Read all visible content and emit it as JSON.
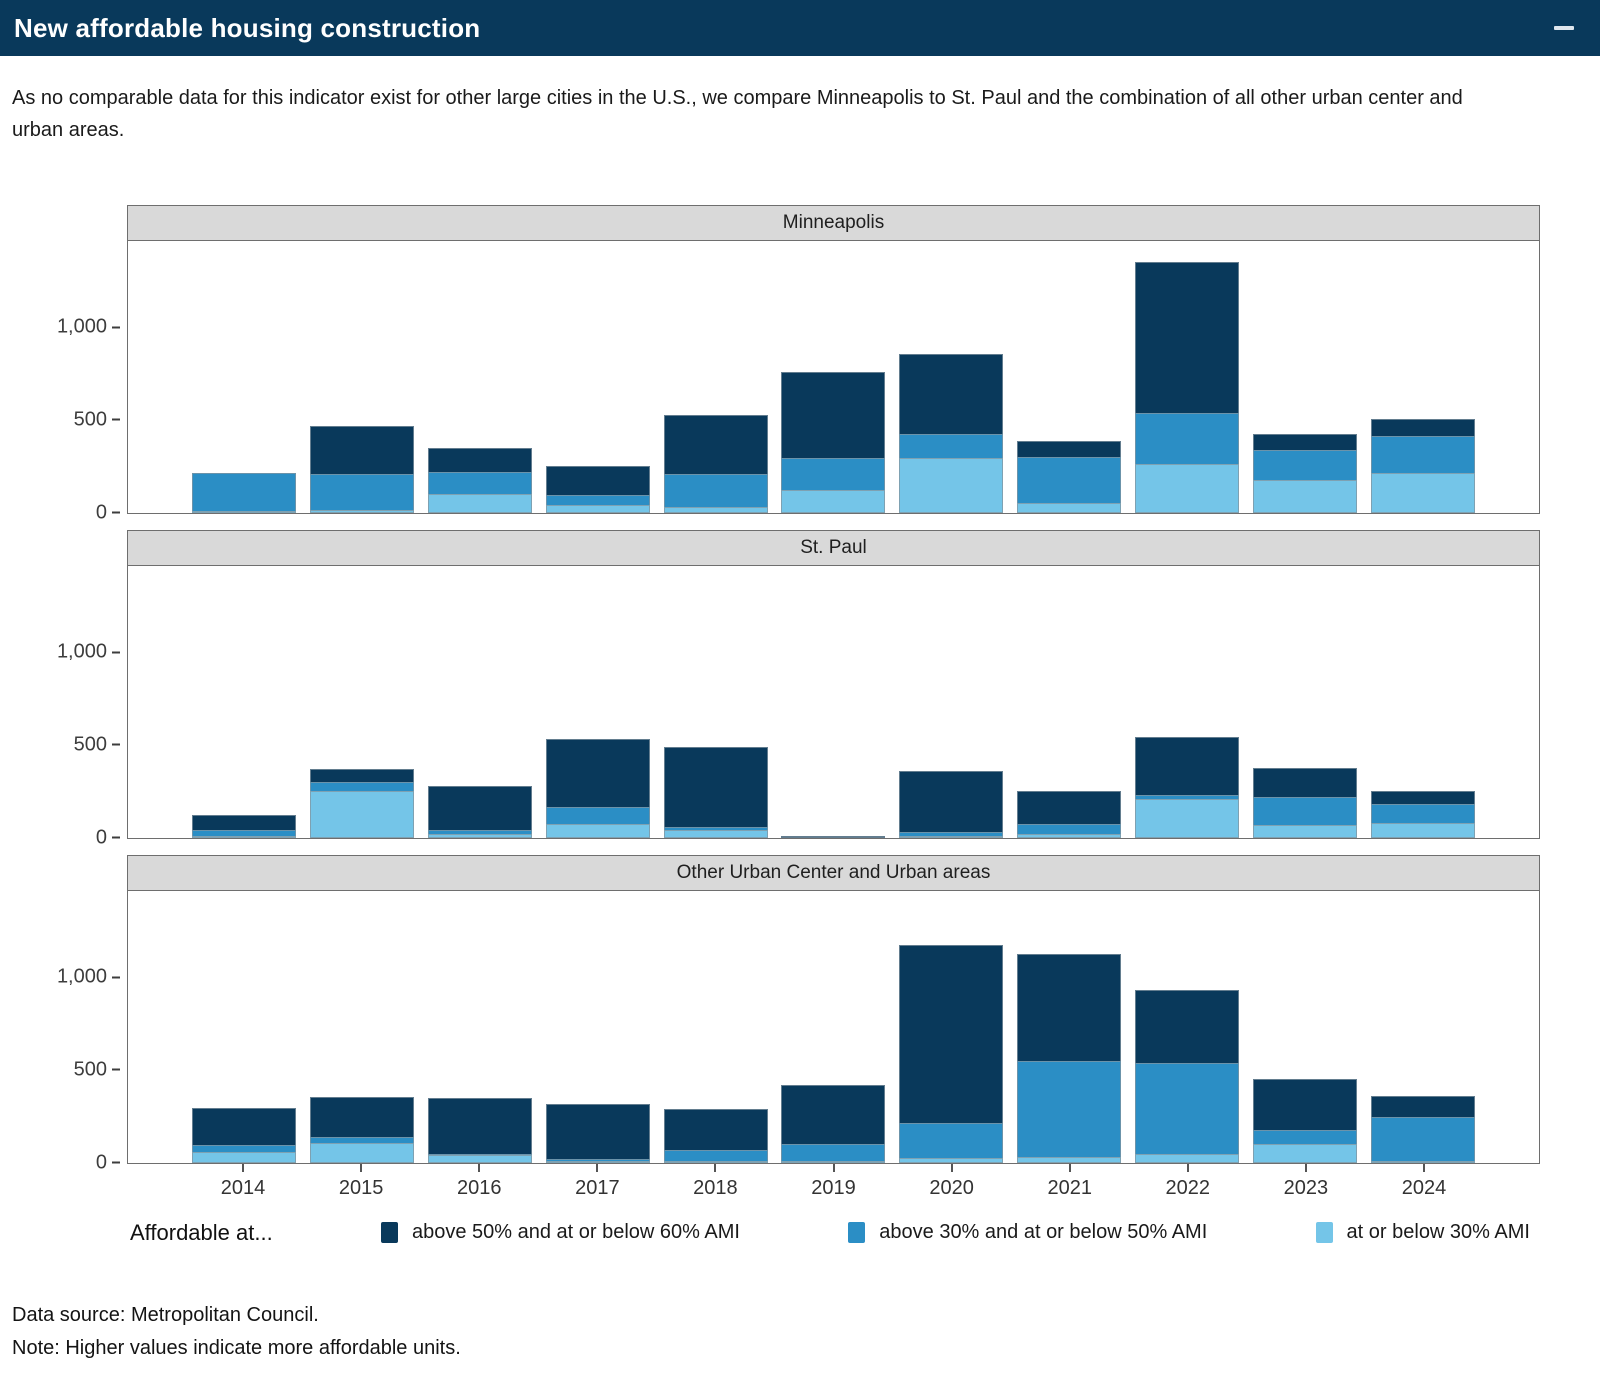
{
  "window": {
    "title": "New affordable housing construction",
    "icons": {
      "minimize": "minus-dash"
    }
  },
  "subtitle": "As no comparable data for this indicator exist for other large cities in the U.S., we compare Minneapolis to St. Paul and the combination of all other urban center and urban areas.",
  "colors": {
    "header_bg": "#09395B",
    "strip_bg": "#D9D9D9",
    "dark": "#09395B",
    "medium": "#2B8EC5",
    "light": "#74C5E8"
  },
  "legend": {
    "title": "Affordable at...",
    "items": [
      {
        "label": "above 50% and at or below 60% AMI",
        "color_key": "dark"
      },
      {
        "label": "above 30% and at or below 50% AMI",
        "color_key": "medium"
      },
      {
        "label": "at or below 30% AMI",
        "color_key": "light"
      }
    ]
  },
  "footer": {
    "source": "Data source: Metropolitan Council.",
    "note": "Note: Higher values indicate more affordable units."
  },
  "chart_data": {
    "type": "bar",
    "stacked": true,
    "grid": false,
    "legend_position": "bottom",
    "categories": [
      "2014",
      "2015",
      "2016",
      "2017",
      "2018",
      "2019",
      "2020",
      "2021",
      "2022",
      "2023",
      "2024"
    ],
    "ylim": [
      0,
      1465
    ],
    "yticks": [
      0,
      500,
      1000
    ],
    "ytick_labels": [
      "0",
      "500",
      "1,000"
    ],
    "facets": [
      {
        "title": "Minneapolis",
        "series": [
          {
            "name": "above 50% and at or below 60% AMI",
            "color_key": "dark",
            "values": [
              0,
              260,
              130,
              155,
              315,
              465,
              430,
              85,
              815,
              85,
              90
            ]
          },
          {
            "name": "above 30% and at or below 50% AMI",
            "color_key": "medium",
            "values": [
              205,
              195,
              120,
              55,
              180,
              170,
              130,
              245,
              270,
              165,
              200
            ]
          },
          {
            "name": "at or below 30% AMI",
            "color_key": "light",
            "values": [
              10,
              15,
              100,
              40,
              30,
              125,
              295,
              55,
              265,
              175,
              215
            ]
          }
        ]
      },
      {
        "title": "St. Paul",
        "series": [
          {
            "name": "above 50% and at or below 60% AMI",
            "color_key": "dark",
            "values": [
              80,
              70,
              240,
              365,
              430,
              10,
              330,
              175,
              315,
              155,
              70
            ]
          },
          {
            "name": "above 30% and at or below 50% AMI",
            "color_key": "medium",
            "values": [
              30,
              50,
              20,
              90,
              20,
              0,
              20,
              55,
              20,
              150,
              100
            ]
          },
          {
            "name": "at or below 30% AMI",
            "color_key": "light",
            "values": [
              10,
              250,
              20,
              75,
              40,
              0,
              10,
              20,
              210,
              70,
              80
            ]
          }
        ]
      },
      {
        "title": "Other Urban Center and Urban areas",
        "series": [
          {
            "name": "above 50% and at or below 60% AMI",
            "color_key": "dark",
            "values": [
              200,
              215,
              300,
              300,
              220,
              320,
              960,
              575,
              390,
              275,
              115
            ]
          },
          {
            "name": "above 30% and at or below 50% AMI",
            "color_key": "medium",
            "values": [
              35,
              35,
              10,
              5,
              60,
              90,
              190,
              520,
              490,
              75,
              235
            ]
          },
          {
            "name": "at or below 30% AMI",
            "color_key": "light",
            "values": [
              60,
              105,
              40,
              5,
              5,
              5,
              25,
              30,
              50,
              100,
              5
            ]
          }
        ]
      }
    ]
  }
}
